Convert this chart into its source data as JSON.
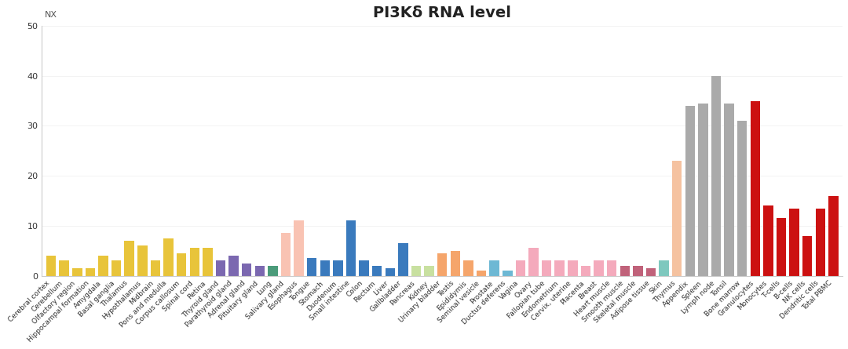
{
  "title": "PI3Kδ RNA level",
  "ylabel": "NX",
  "ylim": [
    0,
    50
  ],
  "yticks": [
    0,
    10,
    20,
    30,
    40,
    50
  ],
  "categories": [
    "Cerebral cortex",
    "Cerebellum",
    "Olfactory region",
    "Hippocampal formation",
    "Amygdala",
    "Basal ganglia",
    "Thalamus",
    "Hypothalamus",
    "Midbrain",
    "Pons and medulla",
    "Corpus callosum",
    "Spinal cord",
    "Retina",
    "Thyroid gland",
    "Parathyroid gland",
    "Adrenal gland",
    "Pituitary gland",
    "Lung",
    "Salivary gland",
    "Esophagus",
    "Tongue",
    "Stomach",
    "Duodenum",
    "Small intestine",
    "Colon",
    "Rectum",
    "Liver",
    "Gallbladder",
    "Pancreas",
    "Kidney",
    "Urinary bladder",
    "Testis",
    "Epididymis",
    "Seminal vesicle",
    "Prostate",
    "Ductus deferens",
    "Vagina",
    "Ovary",
    "Fallopian tube",
    "Endometrium",
    "Cervix, uterine",
    "Placenta",
    "Breast",
    "Heart muscle",
    "Smooth muscle",
    "Skeletal muscle",
    "Adipose tissue",
    "Skin",
    "Thymus",
    "Appendix",
    "Spleen",
    "Lymph node",
    "Tonsil",
    "Bone marrow",
    "Granulocytes",
    "Monocytes",
    "T-cells",
    "B-cells",
    "NK cells",
    "Dendritic cells",
    "Total PBMC"
  ],
  "values": [
    4.0,
    3.0,
    1.5,
    1.5,
    4.0,
    3.0,
    7.0,
    6.0,
    3.0,
    7.5,
    4.5,
    5.5,
    5.5,
    3.0,
    4.0,
    2.5,
    2.0,
    2.0,
    8.5,
    11.0,
    3.5,
    3.0,
    3.0,
    11.0,
    3.0,
    2.0,
    1.5,
    6.5,
    2.0,
    2.0,
    4.5,
    5.0,
    3.0,
    1.0,
    3.0,
    1.0,
    3.0,
    5.5,
    3.0,
    3.0,
    3.0,
    2.0,
    3.0,
    3.0,
    2.0,
    2.0,
    1.5,
    3.0,
    23.0,
    34.0,
    34.5,
    40.0,
    34.5,
    31.0,
    35.0,
    14.0,
    11.5,
    13.5,
    8.0,
    13.5,
    16.0
  ],
  "colors": [
    "#E8C43A",
    "#E8C43A",
    "#E8C43A",
    "#E8C43A",
    "#E8C43A",
    "#E8C43A",
    "#E8C43A",
    "#E8C43A",
    "#E8C43A",
    "#E8C43A",
    "#E8C43A",
    "#E8C43A",
    "#E8C43A",
    "#7B68B0",
    "#7B68B0",
    "#7B68B0",
    "#7B68B0",
    "#4B9B7A",
    "#F9C3B3",
    "#F9C3B3",
    "#3A7ABD",
    "#3A7ABD",
    "#3A7ABD",
    "#3A7ABD",
    "#3A7ABD",
    "#3A7ABD",
    "#3A7ABD",
    "#3A7ABD",
    "#C8E0A0",
    "#C8E0A0",
    "#F5A56B",
    "#F5A56B",
    "#F5A56B",
    "#F5A56B",
    "#6DB8D4",
    "#6DB8D4",
    "#F4AABC",
    "#F4AABC",
    "#F4AABC",
    "#F4AABC",
    "#F4AABC",
    "#F4AABC",
    "#F4AABC",
    "#F4AABC",
    "#C0627A",
    "#C0627A",
    "#C0627A",
    "#7EC8BE",
    "#F5C2A0",
    "#AAAAAA",
    "#AAAAAA",
    "#AAAAAA",
    "#AAAAAA",
    "#AAAAAA",
    "#CC1111",
    "#CC1111",
    "#CC1111",
    "#CC1111",
    "#CC1111",
    "#CC1111",
    "#CC1111"
  ],
  "background_color": "#ffffff",
  "title_fontsize": 14,
  "tick_fontsize": 6.5
}
